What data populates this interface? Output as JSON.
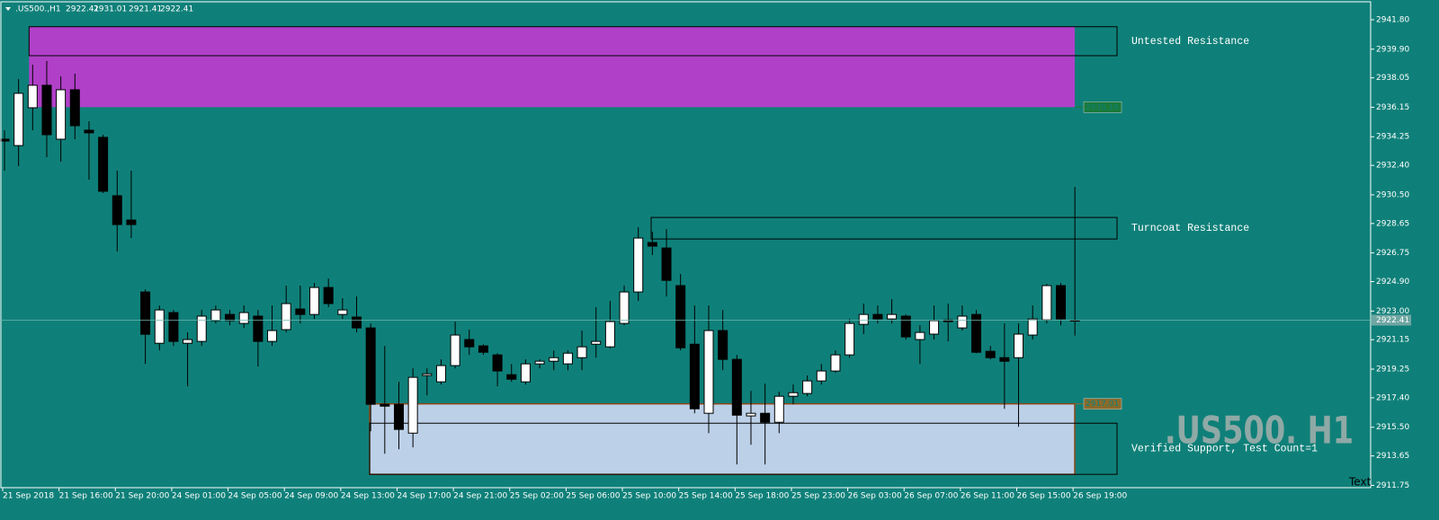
{
  "chart_data": {
    "type": "candlestick",
    "symbol": ".US500.,H1",
    "watermark": ".US500. H1",
    "corner_text": "Text",
    "background": "#0f8079",
    "up_color": "#ffffff",
    "down_color": "#000000",
    "categories": [
      "21 Sep 2018",
      null,
      null,
      null,
      "21 Sep 16:00",
      null,
      null,
      null,
      "21 Sep 20:00",
      null,
      null,
      null,
      "24 Sep 01:00",
      null,
      null,
      null,
      "24 Sep 05:00",
      null,
      null,
      null,
      "24 Sep 09:00",
      null,
      null,
      null,
      "24 Sep 13:00",
      null,
      null,
      null,
      "24 Sep 17:00",
      null,
      null,
      null,
      "24 Sep 21:00",
      null,
      null,
      null,
      "25 Sep 02:00",
      null,
      null,
      null,
      "25 Sep 06:00",
      null,
      null,
      null,
      "25 Sep 10:00",
      null,
      null,
      null,
      "25 Sep 14:00",
      null,
      null,
      null,
      "25 Sep 18:00",
      null,
      null,
      null,
      "25 Sep 23:00",
      null,
      null,
      null,
      "26 Sep 03:00",
      null,
      null,
      null,
      "26 Sep 07:00",
      null,
      null,
      null,
      "26 Sep 11:00",
      null,
      null,
      null,
      "26 Sep 15:00",
      null,
      null,
      null,
      "26 Sep 19:00"
    ],
    "open": [
      2934.09,
      2933.68,
      2936.12,
      2937.57,
      2934.09,
      2937.28,
      2934.67,
      2934.21,
      2930.44,
      2928.87,
      2924.23,
      2920.92,
      2922.9,
      2920.92,
      2921.04,
      2922.38,
      2922.78,
      2922.2,
      2922.67,
      2921.04,
      2921.8,
      2923.13,
      2922.78,
      2924.52,
      2922.78,
      2922.61,
      2921.91,
      2916.98,
      2916.98,
      2915.12,
      2918.84,
      2918.43,
      2919.48,
      2921.16,
      2920.75,
      2920.17,
      2918.89,
      2918.43,
      2919.59,
      2919.76,
      2919.59,
      2919.99,
      2920.86,
      2920.69,
      2922.2,
      2924.23,
      2927.42,
      2927.07,
      2924.64,
      2920.86,
      2916.4,
      2921.74,
      2919.88,
      2916.23,
      2916.4,
      2915.82,
      2917.5,
      2917.68,
      2918.49,
      2919.13,
      2920.17,
      2922.14,
      2922.78,
      2922.49,
      2922.67,
      2921.16,
      2921.51,
      2922.43,
      2921.91,
      2922.78,
      2920.4,
      2919.99,
      2919.99,
      2921.45,
      2922.43,
      2924.64,
      2922.41
    ],
    "high": [
      2934.67,
      2937.98,
      2938.9,
      2939.14,
      2938.15,
      2938.32,
      2935.25,
      2934.38,
      2932.06,
      2932.06,
      2924.4,
      2923.36,
      2923.07,
      2921.62,
      2923.07,
      2923.36,
      2923.07,
      2923.36,
      2923.07,
      2923.36,
      2924.64,
      2924.64,
      2924.81,
      2925.1,
      2923.83,
      2923.94,
      2922.2,
      2920.75,
      2918.43,
      2919.3,
      2919.3,
      2919.88,
      2922.32,
      2921.8,
      2920.86,
      2920.28,
      2919.59,
      2919.88,
      2919.88,
      2920.46,
      2920.46,
      2921.74,
      2923.25,
      2923.65,
      2924.64,
      2928.41,
      2928.12,
      2928.29,
      2925.39,
      2923.36,
      2923.36,
      2923.07,
      2920.17,
      2917.85,
      2918.31,
      2917.79,
      2918.26,
      2918.84,
      2919.59,
      2920.46,
      2922.49,
      2923.48,
      2923.36,
      2923.77,
      2922.78,
      2922.08,
      2923.36,
      2923.48,
      2923.36,
      2923.07,
      2920.75,
      2922.2,
      2922.2,
      2923.36,
      2924.75,
      2924.81,
      2931.01
    ],
    "low": [
      2932.06,
      2932.35,
      2934.67,
      2932.93,
      2932.64,
      2934.09,
      2931.48,
      2930.61,
      2926.84,
      2927.71,
      2919.59,
      2920.46,
      2920.75,
      2918.14,
      2920.75,
      2922.2,
      2922.08,
      2921.91,
      2919.42,
      2920.75,
      2921.62,
      2922.2,
      2922.49,
      2923.25,
      2922.49,
      2921.62,
      2915.24,
      2913.79,
      2914.08,
      2914.2,
      2917.56,
      2918.26,
      2919.3,
      2920.17,
      2920.17,
      2918.14,
      2918.43,
      2918.26,
      2919.3,
      2919.18,
      2919.18,
      2919.18,
      2919.99,
      2920.58,
      2922.08,
      2923.65,
      2926.61,
      2923.94,
      2920.46,
      2916.4,
      2915.12,
      2919.18,
      2913.1,
      2914.37,
      2913.1,
      2915.12,
      2916.98,
      2917.5,
      2918.26,
      2919.01,
      2919.99,
      2921.51,
      2922.2,
      2922.2,
      2921.16,
      2919.59,
      2921.16,
      2921.04,
      2921.74,
      2920.28,
      2919.88,
      2916.69,
      2915.53,
      2921.16,
      2922.2,
      2922.08,
      2921.41
    ],
    "close": [
      2933.97,
      2937.05,
      2937.57,
      2934.38,
      2937.28,
      2934.96,
      2934.5,
      2930.73,
      2928.58,
      2928.58,
      2921.5,
      2923.07,
      2921.04,
      2921.16,
      2922.67,
      2923.07,
      2922.38,
      2922.9,
      2921.04,
      2921.74,
      2923.48,
      2922.78,
      2924.52,
      2923.48,
      2923.07,
      2921.91,
      2916.98,
      2916.86,
      2915.36,
      2918.72,
      2918.95,
      2919.48,
      2921.45,
      2920.69,
      2920.34,
      2919.13,
      2918.6,
      2919.59,
      2919.76,
      2919.99,
      2920.28,
      2920.69,
      2921.04,
      2922.32,
      2924.23,
      2927.71,
      2927.19,
      2924.98,
      2920.63,
      2916.69,
      2921.74,
      2919.88,
      2916.28,
      2916.4,
      2915.82,
      2917.5,
      2917.73,
      2918.49,
      2919.13,
      2920.17,
      2922.2,
      2922.78,
      2922.49,
      2922.78,
      2921.33,
      2921.62,
      2922.38,
      2922.32,
      2922.67,
      2920.34,
      2919.99,
      2919.76,
      2921.51,
      2922.49,
      2924.64,
      2922.49,
      2922.41
    ],
    "zones": [
      {
        "name": "Untested Resistance",
        "top": 2941.35,
        "bottom": 2936.16,
        "color": "#b040c8",
        "box_top": 2941.35,
        "box_bottom": 2939.48,
        "level": 2936.16,
        "tag_color": "#1a7a3a"
      },
      {
        "name": "Turncoat Resistance",
        "box_top": 2929.04,
        "box_bottom": 2927.65
      },
      {
        "name": "Verified Support, Test Count=1",
        "top": 2917.01,
        "bottom": 2912.46,
        "color": "#bcd0e8",
        "border": "#8b4513",
        "box_top": 2915.76,
        "box_bottom": 2912.46,
        "level": 2917.01,
        "tag_color": "#8b6b2b"
      }
    ],
    "ylim": [
      2911.6,
      2942.9
    ],
    "yticks": [
      {
        "value": 2941.8,
        "label": "2941.80"
      },
      {
        "value": 2939.9,
        "label": "2939.90"
      },
      {
        "value": 2938.05,
        "label": "2938.05"
      },
      {
        "value": 2936.15,
        "label": "2936.15"
      },
      {
        "value": 2934.25,
        "label": "2934.25"
      },
      {
        "value": 2932.4,
        "label": "2932.40"
      },
      {
        "value": 2930.5,
        "label": "2930.50"
      },
      {
        "value": 2928.65,
        "label": "2928.65"
      },
      {
        "value": 2926.75,
        "label": "2926.75"
      },
      {
        "value": 2924.9,
        "label": "2924.90"
      },
      {
        "value": 2923,
        "label": "2923.00"
      },
      {
        "value": 2921.15,
        "label": "2921.15"
      },
      {
        "value": 2919.25,
        "label": "2919.25"
      },
      {
        "value": 2917.4,
        "label": "2917.40"
      },
      {
        "value": 2915.5,
        "label": "2915.50"
      },
      {
        "value": 2913.65,
        "label": "2913.65"
      },
      {
        "value": 2911.75,
        "label": "2911.75"
      }
    ]
  }
}
